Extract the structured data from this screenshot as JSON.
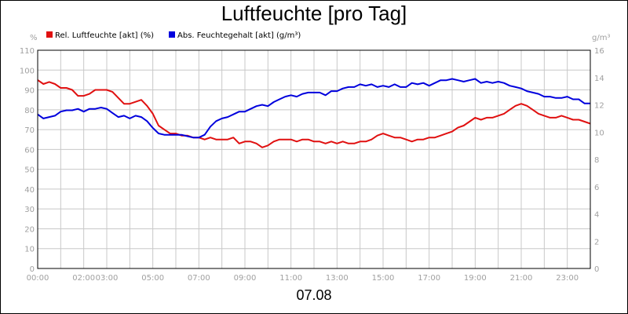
{
  "chart_data": {
    "type": "line",
    "title": "Luftfeuchte [pro Tag]",
    "date_label": "07.08",
    "y_left": {
      "unit": "%",
      "ylim": [
        0,
        110
      ],
      "ticks": [
        0,
        10,
        20,
        30,
        40,
        50,
        60,
        70,
        80,
        90,
        100,
        110
      ]
    },
    "y_right": {
      "unit": "g/m³",
      "ylim": [
        0,
        16
      ],
      "ticks": [
        0,
        2,
        4,
        6,
        8,
        10,
        12,
        14,
        16
      ]
    },
    "x_ticks": [
      "00:00",
      "02:00",
      "03:00",
      "05:00",
      "07:00",
      "09:00",
      "11:00",
      "13:00",
      "15:00",
      "17:00",
      "19:00",
      "21:00",
      "23:00"
    ],
    "x_tick_hours": [
      0,
      2,
      3,
      5,
      7,
      9,
      11,
      13,
      15,
      17,
      19,
      21,
      23
    ],
    "xlim_hours": [
      0,
      24
    ],
    "grid": true,
    "legend_position": "top-left",
    "colors": {
      "rel": "#e01010",
      "abs": "#0000dd",
      "grid": "#c8c8c8"
    },
    "series": [
      {
        "name": "Rel. Luftfeuchte [akt] (%)",
        "axis": "left",
        "color": "#e01010",
        "x": [
          0,
          0.25,
          0.5,
          0.75,
          1.0,
          1.25,
          1.5,
          1.75,
          2.0,
          2.25,
          2.5,
          2.75,
          3.0,
          3.25,
          3.5,
          3.75,
          4.0,
          4.25,
          4.5,
          4.75,
          5.0,
          5.25,
          5.5,
          5.75,
          6.0,
          6.25,
          6.5,
          6.75,
          7.0,
          7.25,
          7.5,
          7.75,
          8.0,
          8.25,
          8.5,
          8.75,
          9.0,
          9.25,
          9.5,
          9.75,
          10.0,
          10.25,
          10.5,
          10.75,
          11.0,
          11.25,
          11.5,
          11.75,
          12.0,
          12.25,
          12.5,
          12.75,
          13.0,
          13.25,
          13.5,
          13.75,
          14.0,
          14.25,
          14.5,
          14.75,
          15.0,
          15.25,
          15.5,
          15.75,
          16.0,
          16.25,
          16.5,
          16.75,
          17.0,
          17.25,
          17.5,
          17.75,
          18.0,
          18.25,
          18.5,
          18.75,
          19.0,
          19.25,
          19.5,
          19.75,
          20.0,
          20.25,
          20.5,
          20.75,
          21.0,
          21.25,
          21.5,
          21.75,
          22.0,
          22.25,
          22.5,
          22.75,
          23.0,
          23.25,
          23.5,
          23.75,
          24.0
        ],
        "values": [
          95,
          93,
          94,
          93,
          91,
          91,
          90,
          87,
          87,
          88,
          90,
          90,
          90,
          89,
          86,
          83,
          83,
          84,
          85,
          82,
          78,
          72,
          70,
          68,
          68,
          67,
          67,
          66,
          66,
          65,
          66,
          65,
          65,
          65,
          66,
          63,
          64,
          64,
          63,
          61,
          62,
          64,
          65,
          65,
          65,
          64,
          65,
          65,
          64,
          64,
          63,
          64,
          63,
          64,
          63,
          63,
          64,
          64,
          65,
          67,
          68,
          67,
          66,
          66,
          65,
          64,
          65,
          65,
          66,
          66,
          67,
          68,
          69,
          71,
          72,
          74,
          76,
          75,
          76,
          76,
          77,
          78,
          80,
          82,
          83,
          82,
          80,
          78,
          77,
          76,
          76,
          77,
          76,
          75,
          75,
          74,
          73
        ]
      },
      {
        "name": "Abs. Feuchtegehalt [akt] (g/m³)",
        "axis": "right",
        "color": "#0000dd",
        "x": [
          0,
          0.25,
          0.5,
          0.75,
          1.0,
          1.25,
          1.5,
          1.75,
          2.0,
          2.25,
          2.5,
          2.75,
          3.0,
          3.25,
          3.5,
          3.75,
          4.0,
          4.25,
          4.5,
          4.75,
          5.0,
          5.25,
          5.5,
          5.75,
          6.0,
          6.25,
          6.5,
          6.75,
          7.0,
          7.25,
          7.5,
          7.75,
          8.0,
          8.25,
          8.5,
          8.75,
          9.0,
          9.25,
          9.5,
          9.75,
          10.0,
          10.25,
          10.5,
          10.75,
          11.0,
          11.25,
          11.5,
          11.75,
          12.0,
          12.25,
          12.5,
          12.75,
          13.0,
          13.25,
          13.5,
          13.75,
          14.0,
          14.25,
          14.5,
          14.75,
          15.0,
          15.25,
          15.5,
          15.75,
          16.0,
          16.25,
          16.5,
          16.75,
          17.0,
          17.25,
          17.5,
          17.75,
          18.0,
          18.25,
          18.5,
          18.75,
          19.0,
          19.25,
          19.5,
          19.75,
          20.0,
          20.25,
          20.5,
          20.75,
          21.0,
          21.25,
          21.5,
          21.75,
          22.0,
          22.25,
          22.5,
          22.75,
          23.0,
          23.25,
          23.5,
          23.75,
          24.0
        ],
        "values": [
          11.3,
          11.0,
          11.1,
          11.2,
          11.5,
          11.6,
          11.6,
          11.7,
          11.5,
          11.7,
          11.7,
          11.8,
          11.7,
          11.4,
          11.1,
          11.2,
          11.0,
          11.2,
          11.1,
          10.8,
          10.3,
          9.9,
          9.8,
          9.8,
          9.8,
          9.8,
          9.7,
          9.6,
          9.6,
          9.8,
          10.4,
          10.8,
          11.0,
          11.1,
          11.3,
          11.5,
          11.5,
          11.7,
          11.9,
          12.0,
          11.9,
          12.2,
          12.4,
          12.6,
          12.7,
          12.6,
          12.8,
          12.9,
          12.9,
          12.9,
          12.7,
          13.0,
          13.0,
          13.2,
          13.3,
          13.3,
          13.5,
          13.4,
          13.5,
          13.3,
          13.4,
          13.3,
          13.5,
          13.3,
          13.3,
          13.6,
          13.5,
          13.6,
          13.4,
          13.6,
          13.8,
          13.8,
          13.9,
          13.8,
          13.7,
          13.8,
          13.9,
          13.6,
          13.7,
          13.6,
          13.7,
          13.6,
          13.4,
          13.3,
          13.2,
          13.0,
          12.9,
          12.8,
          12.6,
          12.6,
          12.5,
          12.5,
          12.6,
          12.4,
          12.4,
          12.1,
          12.1
        ]
      }
    ]
  }
}
